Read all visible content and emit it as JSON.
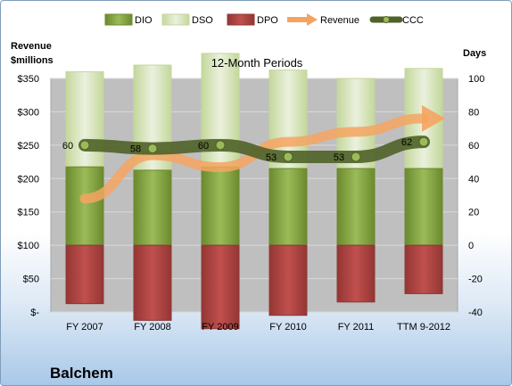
{
  "company": "Balchem",
  "chart_data": {
    "type": "bar",
    "title": "12-Month Periods",
    "categories": [
      "FY 2007",
      "FY 2008",
      "FY 2009",
      "FY 2010",
      "FY 2011",
      "TTM 9-2012"
    ],
    "left_axis": {
      "label_line1": "Revenue",
      "label_line2": "$millions",
      "ticks": [
        "$-",
        "$50",
        "$100",
        "$150",
        "$200",
        "$250",
        "$300",
        "$350"
      ],
      "range": [
        0,
        350
      ]
    },
    "right_axis": {
      "label": "Days",
      "ticks": [
        "-40",
        "-20",
        "0",
        "20",
        "40",
        "60",
        "80",
        "100"
      ],
      "range": [
        -40,
        100
      ]
    },
    "legend": [
      "DIO",
      "DSO",
      "DPO",
      "Revenue",
      "CCC"
    ],
    "legend_position": "top",
    "grid": true,
    "series": [
      {
        "name": "DIO",
        "axis": "days",
        "color": "#7a9a3a",
        "values": [
          47,
          45,
          47,
          46,
          46,
          46
        ]
      },
      {
        "name": "DSO",
        "axis": "days",
        "color": "#d7e4bd",
        "values": [
          57,
          63,
          68,
          59,
          54,
          60
        ]
      },
      {
        "name": "DPO",
        "axis": "days",
        "color": "#b84a48",
        "values": [
          -35,
          -45,
          -50,
          -42,
          -34,
          -29
        ]
      },
      {
        "name": "Revenue",
        "axis": "revenue",
        "color": "#f4a460",
        "values": [
          170,
          235,
          217,
          255,
          270,
          290
        ]
      },
      {
        "name": "CCC",
        "axis": "days",
        "color": "#4f6228",
        "values": [
          60,
          58,
          60,
          53,
          53,
          62
        ],
        "labels": [
          "60",
          "58",
          "60",
          "53",
          "53",
          "62"
        ]
      }
    ]
  }
}
